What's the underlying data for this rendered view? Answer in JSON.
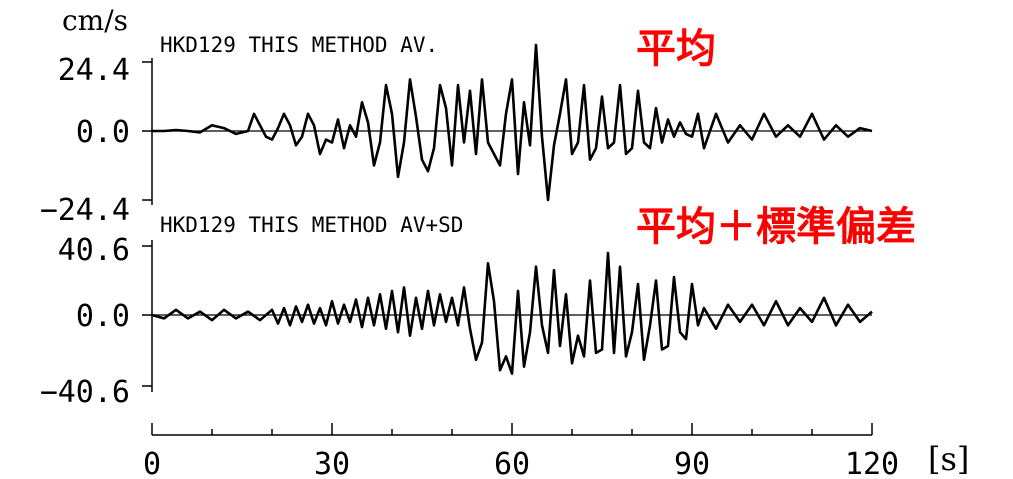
{
  "chart_data": [
    {
      "type": "line",
      "unit": "cm/s",
      "title": "HKD129 THIS METHOD AV.",
      "annotation": "平均",
      "ylim": [
        -24.4,
        24.4
      ],
      "yticks": [
        "24.4",
        "0.0",
        "−24.4"
      ],
      "xlim": [
        0,
        120
      ],
      "series": [
        {
          "x": [
            0,
            2,
            4,
            6,
            8,
            10,
            12,
            14,
            16,
            17,
            18,
            19,
            20,
            21,
            22,
            23,
            24,
            25,
            26,
            27,
            28,
            29,
            30,
            31,
            32,
            33,
            34,
            35,
            36,
            37,
            38,
            39,
            40,
            41,
            42,
            43,
            44,
            45,
            46,
            47,
            48,
            49,
            50,
            51,
            52,
            53,
            54,
            55,
            56,
            57,
            58,
            59,
            60,
            61,
            62,
            63,
            64,
            65,
            66,
            67,
            68,
            69,
            70,
            71,
            72,
            73,
            74,
            75,
            76,
            77,
            78,
            79,
            80,
            81,
            82,
            83,
            84,
            85,
            86,
            87,
            88,
            89,
            90,
            91,
            92,
            94,
            96,
            98,
            100,
            102,
            104,
            106,
            108,
            110,
            112,
            114,
            116,
            118,
            120
          ],
          "y": [
            0,
            0,
            0.3,
            0,
            -0.5,
            2,
            1,
            -1,
            0,
            6,
            2,
            -2,
            -3,
            1,
            6,
            2,
            -5,
            -2,
            6,
            2,
            -8,
            -3,
            -4,
            4,
            -6,
            2,
            -2,
            10,
            3,
            -12,
            -4,
            16,
            6,
            -16,
            -4,
            18,
            5,
            -10,
            -14,
            -6,
            16,
            8,
            -12,
            16,
            -4,
            14,
            -8,
            18,
            -4,
            -8,
            -12,
            6,
            18,
            -15,
            10,
            -5,
            30,
            -2,
            -24,
            -5,
            6,
            18,
            -8,
            -4,
            16,
            -10,
            -6,
            12,
            -6,
            -4,
            16,
            -8,
            -6,
            14,
            -4,
            -6,
            8,
            -4,
            4,
            -2,
            3,
            -1,
            -2,
            6,
            -6,
            6,
            -4,
            2,
            -3,
            6,
            -2,
            2,
            -2,
            6,
            -3,
            2,
            -2,
            1,
            0
          ]
        }
      ]
    },
    {
      "type": "line",
      "unit": "cm/s",
      "title": "HKD129 THIS METHOD AV+SD",
      "annotation": "平均＋標準偏差",
      "ylim": [
        -40.6,
        40.6
      ],
      "yticks": [
        "40.6",
        "0.0",
        "−40.6"
      ],
      "xlim": [
        0,
        120
      ],
      "xlabel": "[s]",
      "xticks": [
        0,
        30,
        60,
        90,
        120
      ],
      "series": [
        {
          "x": [
            0,
            2,
            4,
            6,
            8,
            10,
            12,
            14,
            16,
            18,
            20,
            21,
            22,
            23,
            24,
            25,
            26,
            27,
            28,
            29,
            30,
            31,
            32,
            33,
            34,
            35,
            36,
            37,
            38,
            39,
            40,
            41,
            42,
            43,
            44,
            45,
            46,
            47,
            48,
            49,
            50,
            51,
            52,
            53,
            54,
            55,
            56,
            57,
            58,
            59,
            60,
            61,
            62,
            63,
            64,
            65,
            66,
            67,
            68,
            69,
            70,
            71,
            72,
            73,
            74,
            75,
            76,
            77,
            78,
            79,
            80,
            81,
            82,
            83,
            84,
            85,
            86,
            87,
            88,
            89,
            90,
            91,
            92,
            94,
            96,
            98,
            100,
            102,
            104,
            106,
            108,
            110,
            112,
            114,
            116,
            118,
            120
          ],
          "y": [
            0,
            -2,
            3,
            -2,
            2,
            -3,
            3,
            -2,
            2,
            -3,
            3,
            -5,
            4,
            -6,
            5,
            -4,
            6,
            -5,
            4,
            -6,
            8,
            -5,
            6,
            -4,
            9,
            -7,
            10,
            -6,
            12,
            -8,
            14,
            -10,
            16,
            -12,
            10,
            -8,
            14,
            -6,
            12,
            -4,
            10,
            -6,
            16,
            -8,
            -26,
            -16,
            30,
            8,
            -32,
            -24,
            -34,
            14,
            -30,
            -10,
            28,
            -6,
            -22,
            26,
            -18,
            12,
            -28,
            -12,
            -24,
            20,
            -22,
            -20,
            36,
            -22,
            28,
            -24,
            -10,
            18,
            -26,
            -6,
            20,
            -20,
            -18,
            22,
            -10,
            -14,
            18,
            -6,
            4,
            -8,
            6,
            -4,
            6,
            -6,
            8,
            -6,
            4,
            -4,
            10,
            -6,
            6,
            -4,
            2
          ]
        }
      ]
    }
  ]
}
